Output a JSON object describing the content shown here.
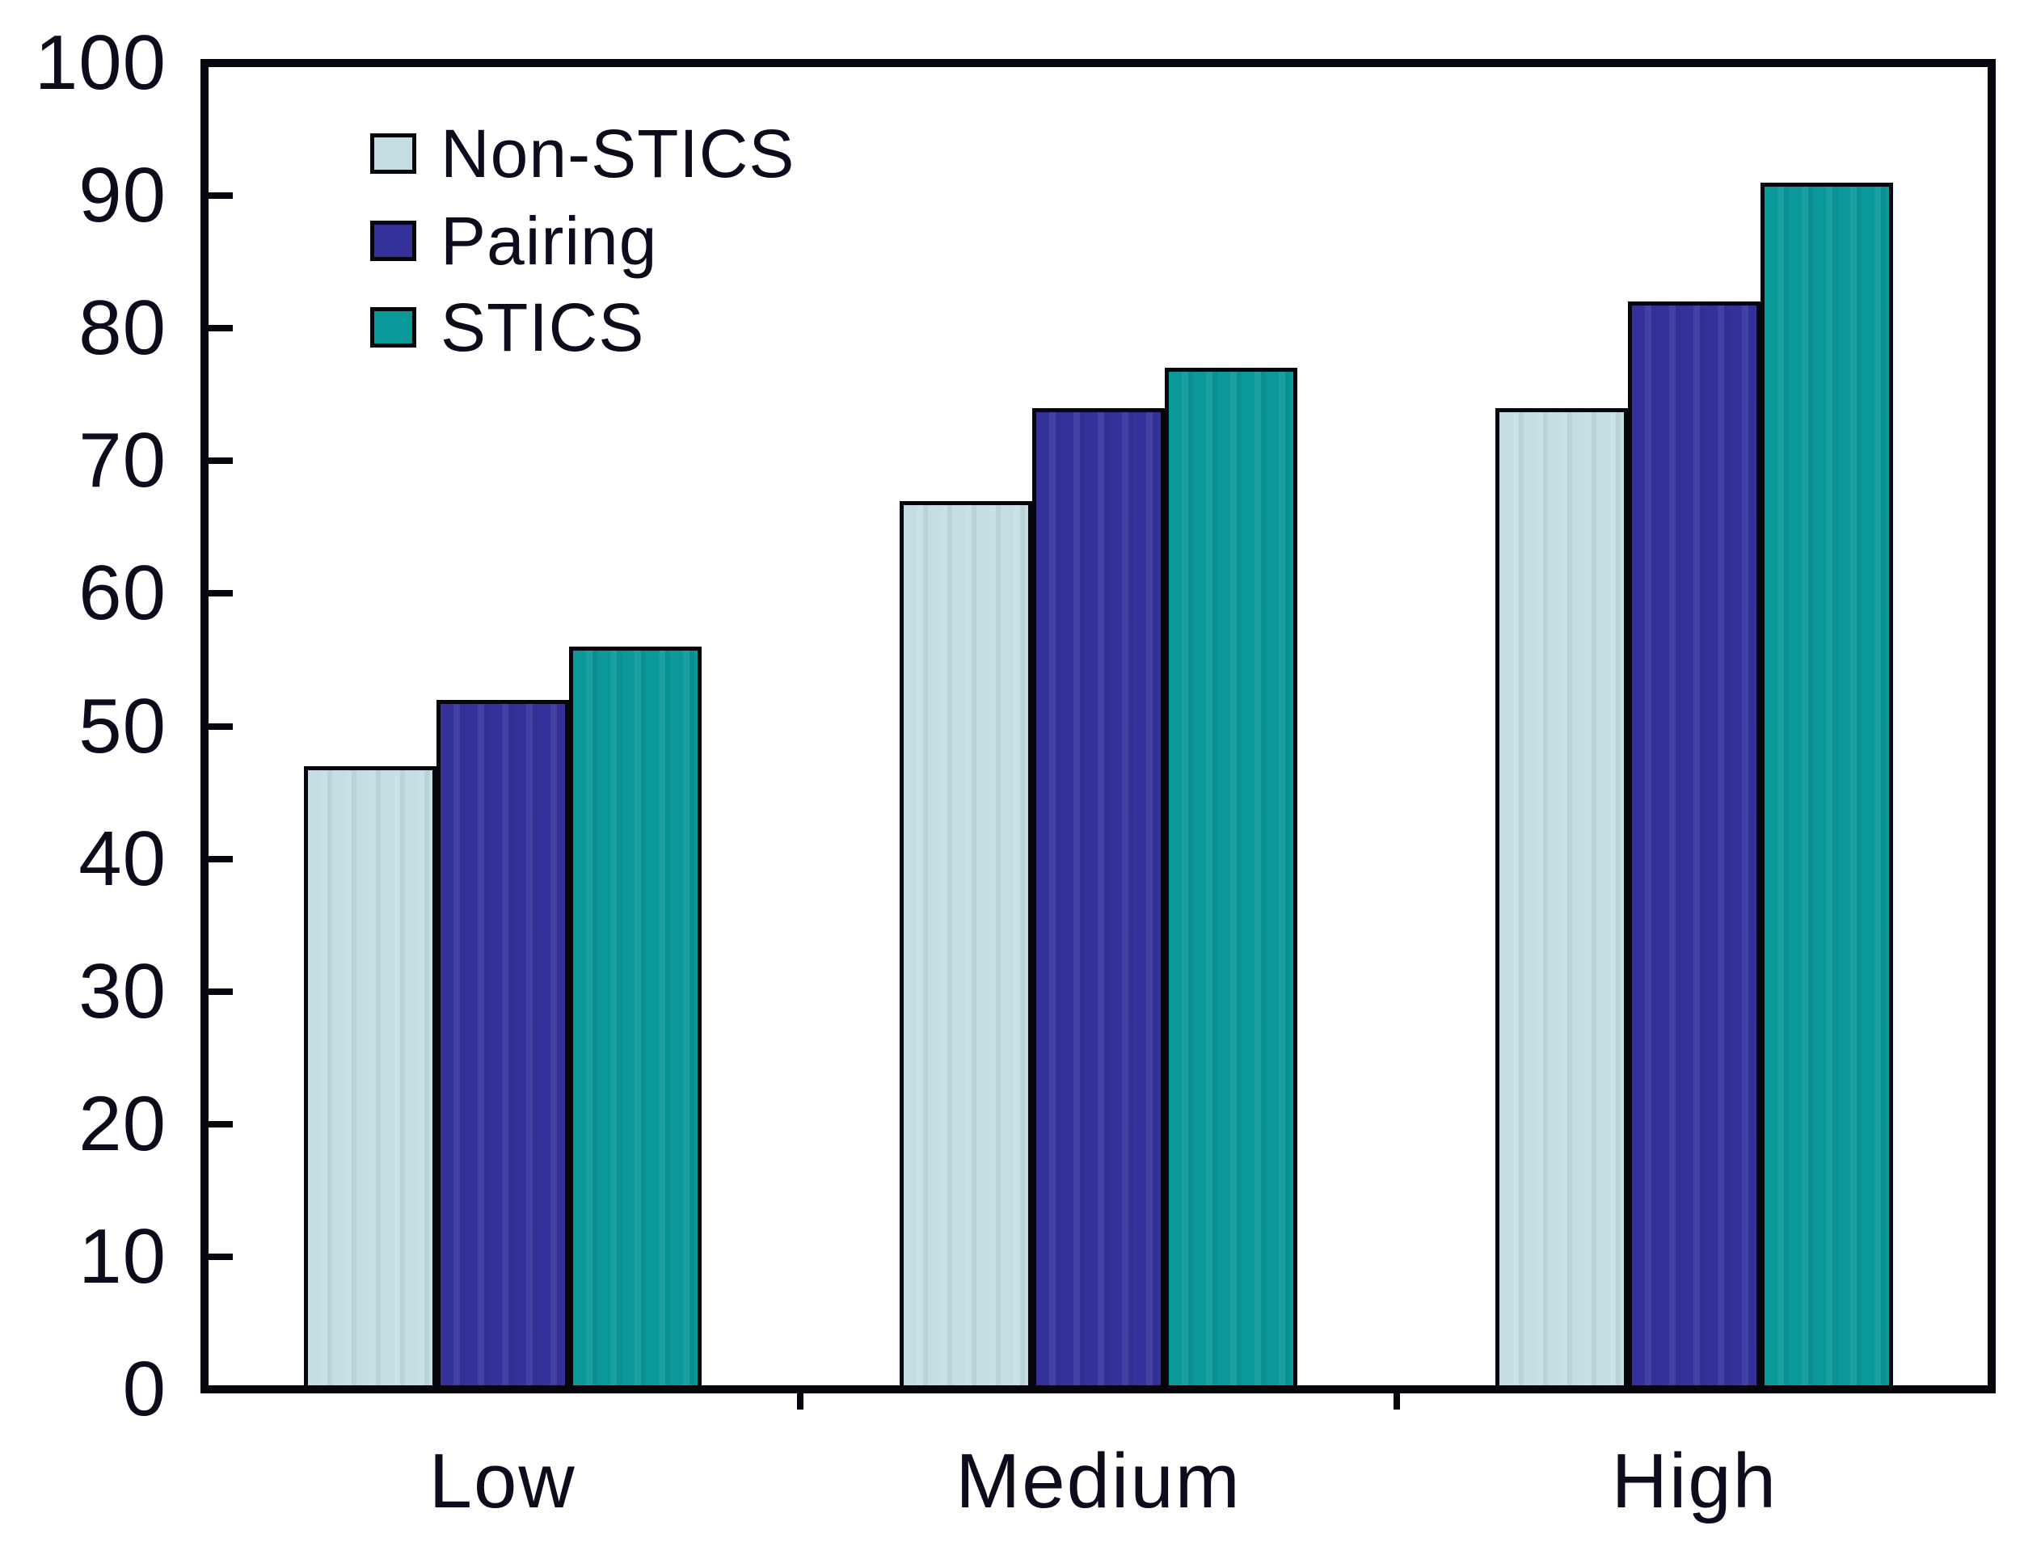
{
  "chart_data": {
    "type": "bar",
    "title": "",
    "xlabel": "",
    "ylabel": "",
    "categories": [
      "Low",
      "Medium",
      "High"
    ],
    "series": [
      {
        "name": "Non-STICS",
        "color": "#c3dfe2",
        "values": [
          47,
          67,
          74
        ]
      },
      {
        "name": "Pairing",
        "color": "#34319b",
        "values": [
          52,
          74,
          82
        ]
      },
      {
        "name": "STICS",
        "color": "#0a9899",
        "values": [
          56,
          77,
          91
        ]
      }
    ],
    "ylim": [
      0,
      100
    ],
    "ytick_step": 10,
    "ytick_labels": [
      "0",
      "10",
      "20",
      "30",
      "40",
      "50",
      "60",
      "70",
      "80",
      "90",
      "100"
    ],
    "xtick_labels": [
      "Low",
      "Medium",
      "High"
    ],
    "grid": false,
    "legend": {
      "position": "top-left-inside",
      "entries": [
        "Non-STICS",
        "Pairing",
        "STICS"
      ]
    },
    "axis_color": "#06060c",
    "text_color": "#0c0c1c",
    "bar_outline_color": "#06060c",
    "background_color": "#ffffff"
  }
}
